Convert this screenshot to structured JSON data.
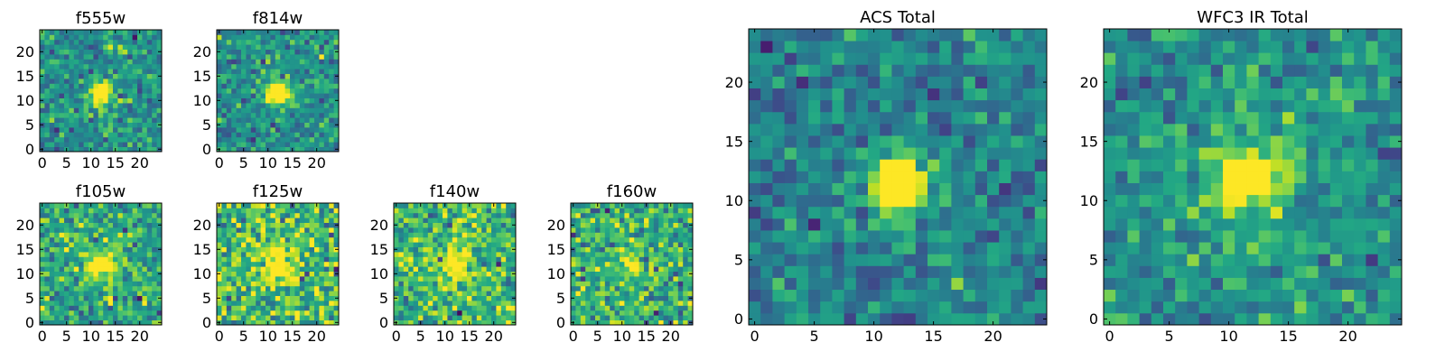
{
  "chart_data": [
    {
      "type": "heatmap",
      "title": "f555w",
      "grid_size": 25,
      "xlim": [
        0,
        24
      ],
      "ylim": [
        0,
        24
      ],
      "xticks": [
        0,
        5,
        10,
        15,
        20
      ],
      "yticks": [
        0,
        5,
        10,
        15,
        20
      ],
      "colormap": "viridis",
      "seed": 11,
      "source_center": [
        12,
        11.5
      ],
      "source_peak": 2.3,
      "source_sigma": 0.9,
      "glow_peak": 0.25,
      "glow_sigma": 2.2,
      "base": 0.5,
      "noise": 0.13
    },
    {
      "type": "heatmap",
      "title": "f814w",
      "grid_size": 25,
      "xlim": [
        0,
        24
      ],
      "ylim": [
        0,
        24
      ],
      "xticks": [
        0,
        5,
        10,
        15,
        20
      ],
      "yticks": [
        0,
        5,
        10,
        15,
        20
      ],
      "colormap": "viridis",
      "seed": 27,
      "source_center": [
        12,
        11.5
      ],
      "source_peak": 2.1,
      "source_sigma": 0.95,
      "glow_peak": 0.3,
      "glow_sigma": 2.3,
      "base": 0.5,
      "noise": 0.13
    },
    {
      "type": "heatmap",
      "title": "f105w",
      "grid_size": 25,
      "xlim": [
        0,
        24
      ],
      "ylim": [
        0,
        24
      ],
      "xticks": [
        0,
        5,
        10,
        15,
        20
      ],
      "yticks": [
        0,
        5,
        10,
        15,
        20
      ],
      "colormap": "viridis",
      "seed": 41,
      "source_center": [
        12,
        12
      ],
      "source_peak": 0.55,
      "source_sigma": 1.5,
      "glow_peak": 0.2,
      "glow_sigma": 4.5,
      "base": 0.58,
      "noise": 0.16
    },
    {
      "type": "heatmap",
      "title": "f125w",
      "grid_size": 25,
      "xlim": [
        0,
        24
      ],
      "ylim": [
        0,
        24
      ],
      "xticks": [
        0,
        5,
        10,
        15,
        20
      ],
      "yticks": [
        0,
        5,
        10,
        15,
        20
      ],
      "colormap": "viridis",
      "seed": 57,
      "source_center": [
        12,
        12
      ],
      "source_peak": 0.45,
      "source_sigma": 1.8,
      "glow_peak": 0.15,
      "glow_sigma": 4.5,
      "base": 0.66,
      "noise": 0.19
    },
    {
      "type": "heatmap",
      "title": "f140w",
      "grid_size": 25,
      "xlim": [
        0,
        24
      ],
      "ylim": [
        0,
        24
      ],
      "xticks": [
        0,
        5,
        10,
        15,
        20
      ],
      "yticks": [
        0,
        5,
        10,
        15,
        20
      ],
      "colormap": "viridis",
      "seed": 73,
      "source_center": [
        12,
        11.5
      ],
      "source_peak": 0.5,
      "source_sigma": 1.3,
      "glow_peak": 0.12,
      "glow_sigma": 4,
      "base": 0.66,
      "noise": 0.17
    },
    {
      "type": "heatmap",
      "title": "f160w",
      "grid_size": 25,
      "xlim": [
        0,
        24
      ],
      "ylim": [
        0,
        24
      ],
      "xticks": [
        0,
        5,
        10,
        15,
        20
      ],
      "yticks": [
        0,
        5,
        10,
        15,
        20
      ],
      "colormap": "viridis",
      "seed": 89,
      "source_center": [
        12,
        12
      ],
      "source_peak": 0.55,
      "source_sigma": 1.2,
      "glow_peak": 0.1,
      "glow_sigma": 4,
      "base": 0.62,
      "noise": 0.17
    },
    {
      "type": "heatmap",
      "title": "ACS Total",
      "grid_size": 25,
      "xlim": [
        0,
        24
      ],
      "ylim": [
        0,
        24
      ],
      "xticks": [
        0,
        5,
        10,
        15,
        20
      ],
      "yticks": [
        0,
        5,
        10,
        15,
        20
      ],
      "colormap": "viridis",
      "seed": 101,
      "source_center": [
        12,
        11.5
      ],
      "source_peak": 2.4,
      "source_sigma": 1.0,
      "glow_peak": 0.28,
      "glow_sigma": 2.3,
      "base": 0.45,
      "noise": 0.12
    },
    {
      "type": "heatmap",
      "title": "WFC3 IR Total",
      "grid_size": 25,
      "xlim": [
        0,
        24
      ],
      "ylim": [
        0,
        24
      ],
      "xticks": [
        0,
        5,
        10,
        15,
        20
      ],
      "yticks": [
        0,
        5,
        10,
        15,
        20
      ],
      "colormap": "viridis",
      "seed": 131,
      "source_center": [
        12,
        12
      ],
      "source_peak": 0.75,
      "source_sigma": 1.4,
      "glow_peak": 0.2,
      "glow_sigma": 4.0,
      "base": 0.5,
      "noise": 0.12
    }
  ]
}
